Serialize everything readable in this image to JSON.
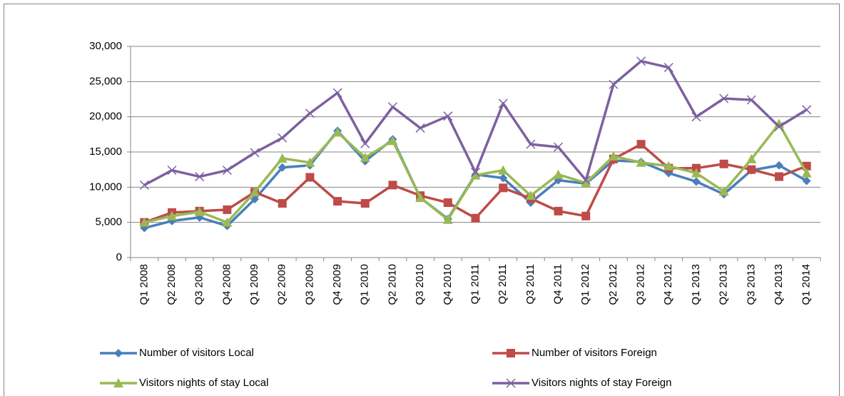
{
  "chart_data": {
    "type": "line",
    "categories": [
      "Q1 2008",
      "Q2 2008",
      "Q3 2008",
      "Q4 2008",
      "Q1 2009",
      "Q2 2009",
      "Q3 2009",
      "Q4 2009",
      "Q1 2010",
      "Q2 2010",
      "Q3 2010",
      "Q4 2010",
      "Q1 2011",
      "Q2 2011",
      "Q3 2011",
      "Q4 2011",
      "Q1 2012",
      "Q2 2012",
      "Q3 2012",
      "Q4 2012",
      "Q1 2013",
      "Q2 2013",
      "Q3 2013",
      "Q4 2013",
      "Q1 2014"
    ],
    "series": [
      {
        "name": "Number of visitors Local",
        "color": "#4a7ebb",
        "marker": "diamond",
        "values": [
          4200,
          5200,
          5700,
          4500,
          8300,
          12800,
          13100,
          18000,
          13700,
          16800,
          8500,
          5500,
          11800,
          11300,
          7800,
          11000,
          10500,
          13800,
          13600,
          12000,
          10800,
          9000,
          12400,
          13100,
          10900
        ]
      },
      {
        "name": "Number of visitors Foreign",
        "color": "#be4b48",
        "marker": "square",
        "values": [
          5000,
          6400,
          6600,
          6800,
          9300,
          7700,
          11400,
          8000,
          7700,
          10300,
          8800,
          7800,
          5600,
          9900,
          8400,
          6600,
          5900,
          14000,
          16100,
          12700,
          12700,
          13300,
          12500,
          11500,
          13000
        ]
      },
      {
        "name": "Visitors nights of stay Local",
        "color": "#98b954",
        "marker": "triangle",
        "values": [
          5000,
          5900,
          6500,
          5000,
          9300,
          14100,
          13500,
          17800,
          14200,
          16600,
          8500,
          5400,
          11700,
          12400,
          8800,
          11800,
          10600,
          14400,
          13500,
          13000,
          12000,
          9400,
          14000,
          19000,
          12000
        ]
      },
      {
        "name": "Visitors nights of stay Foreign",
        "color": "#7d60a0",
        "marker": "x",
        "values": [
          10300,
          12400,
          11500,
          12400,
          14900,
          17000,
          20500,
          23400,
          16200,
          21400,
          18400,
          20100,
          12100,
          21900,
          16100,
          15700,
          11000,
          24600,
          27900,
          27000,
          20000,
          22600,
          22400,
          18600,
          21000
        ]
      }
    ],
    "ylim": [
      0,
      30000
    ],
    "yticks": [
      0,
      {
        "value": 5000,
        "label": "5,000"
      },
      {
        "value": 10000,
        "label": "10,000"
      },
      {
        "value": 15000,
        "label": "15,000"
      },
      {
        "value": 20000,
        "label": "20,000"
      },
      {
        "value": 25000,
        "label": "25,000"
      },
      {
        "value": 30000,
        "label": "30,000"
      }
    ],
    "grid": true,
    "legend": "bottom"
  }
}
